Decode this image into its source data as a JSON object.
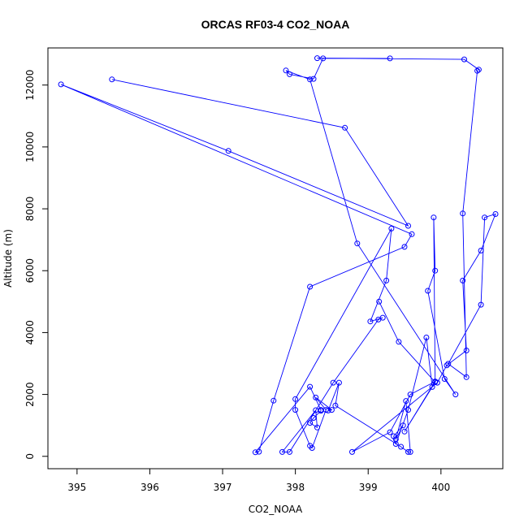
{
  "chart_data": {
    "type": "scatter",
    "title": "ORCAS RF03-4 CO2_NOAA",
    "xlabel": "CO2_NOAA",
    "ylabel": "Altitude (m)",
    "xlim": [
      394.6,
      400.85
    ],
    "ylim": [
      -400,
      13200
    ],
    "xticks": [
      395,
      396,
      397,
      398,
      399,
      400
    ],
    "yticks": [
      0,
      2000,
      4000,
      6000,
      8000,
      10000,
      12000
    ],
    "grid": false,
    "legend": "none",
    "line_color": "#0000ff",
    "marker": "open-circle",
    "series": [
      {
        "x": [
          395.48,
          398.68,
          399.55,
          397.08,
          394.78,
          399.6,
          399.5,
          398.2,
          397.7,
          397.5,
          397.45,
          398.2,
          398.35,
          398.35,
          398.25,
          398.2,
          398.3,
          398.28,
          397.82,
          397.92,
          398.52,
          399.14,
          399.2,
          399.03,
          399.25,
          399.32,
          398.0,
          398.0,
          398.2,
          398.23,
          398.42,
          398.28,
          398.5,
          398.45,
          398.6,
          398.55,
          399.45,
          399.55,
          399.58,
          399.52,
          399.38,
          399.48,
          399.35,
          399.38,
          399.55,
          399.8,
          399.88,
          399.5,
          399.92,
          399.58,
          399.3,
          398.78,
          399.95,
          400.08,
          400.35,
          400.3,
          400.55,
          400.75,
          400.6,
          400.55,
          400.1,
          400.35,
          400.3,
          400.5,
          400.52,
          400.32,
          398.3,
          399.3,
          398.38,
          398.25,
          397.92,
          397.87,
          398.2,
          398.85,
          400.2,
          400.05,
          399.82,
          399.92,
          399.9,
          399.92,
          399.42,
          399.15
        ],
        "y": [
          12180,
          10620,
          7450,
          9870,
          12020,
          7180,
          6770,
          5480,
          1800,
          150,
          130,
          2250,
          1500,
          1470,
          1240,
          1080,
          930,
          1490,
          140,
          140,
          2380,
          4420,
          4480,
          4360,
          5680,
          7360,
          1850,
          1500,
          340,
          270,
          1500,
          1900,
          1500,
          1480,
          2380,
          1640,
          310,
          140,
          140,
          1790,
          550,
          1000,
          650,
          400,
          1500,
          3840,
          2240,
          800,
          2420,
          2000,
          780,
          140,
          2380,
          2940,
          3420,
          5680,
          6650,
          7830,
          7720,
          4900,
          2990,
          2560,
          7850,
          12460,
          12500,
          12830,
          12870,
          12860,
          12860,
          12200,
          12350,
          12470,
          12180,
          6880,
          2000,
          2500,
          5350,
          6000,
          7720,
          2400,
          3700,
          5000
        ]
      }
    ]
  }
}
